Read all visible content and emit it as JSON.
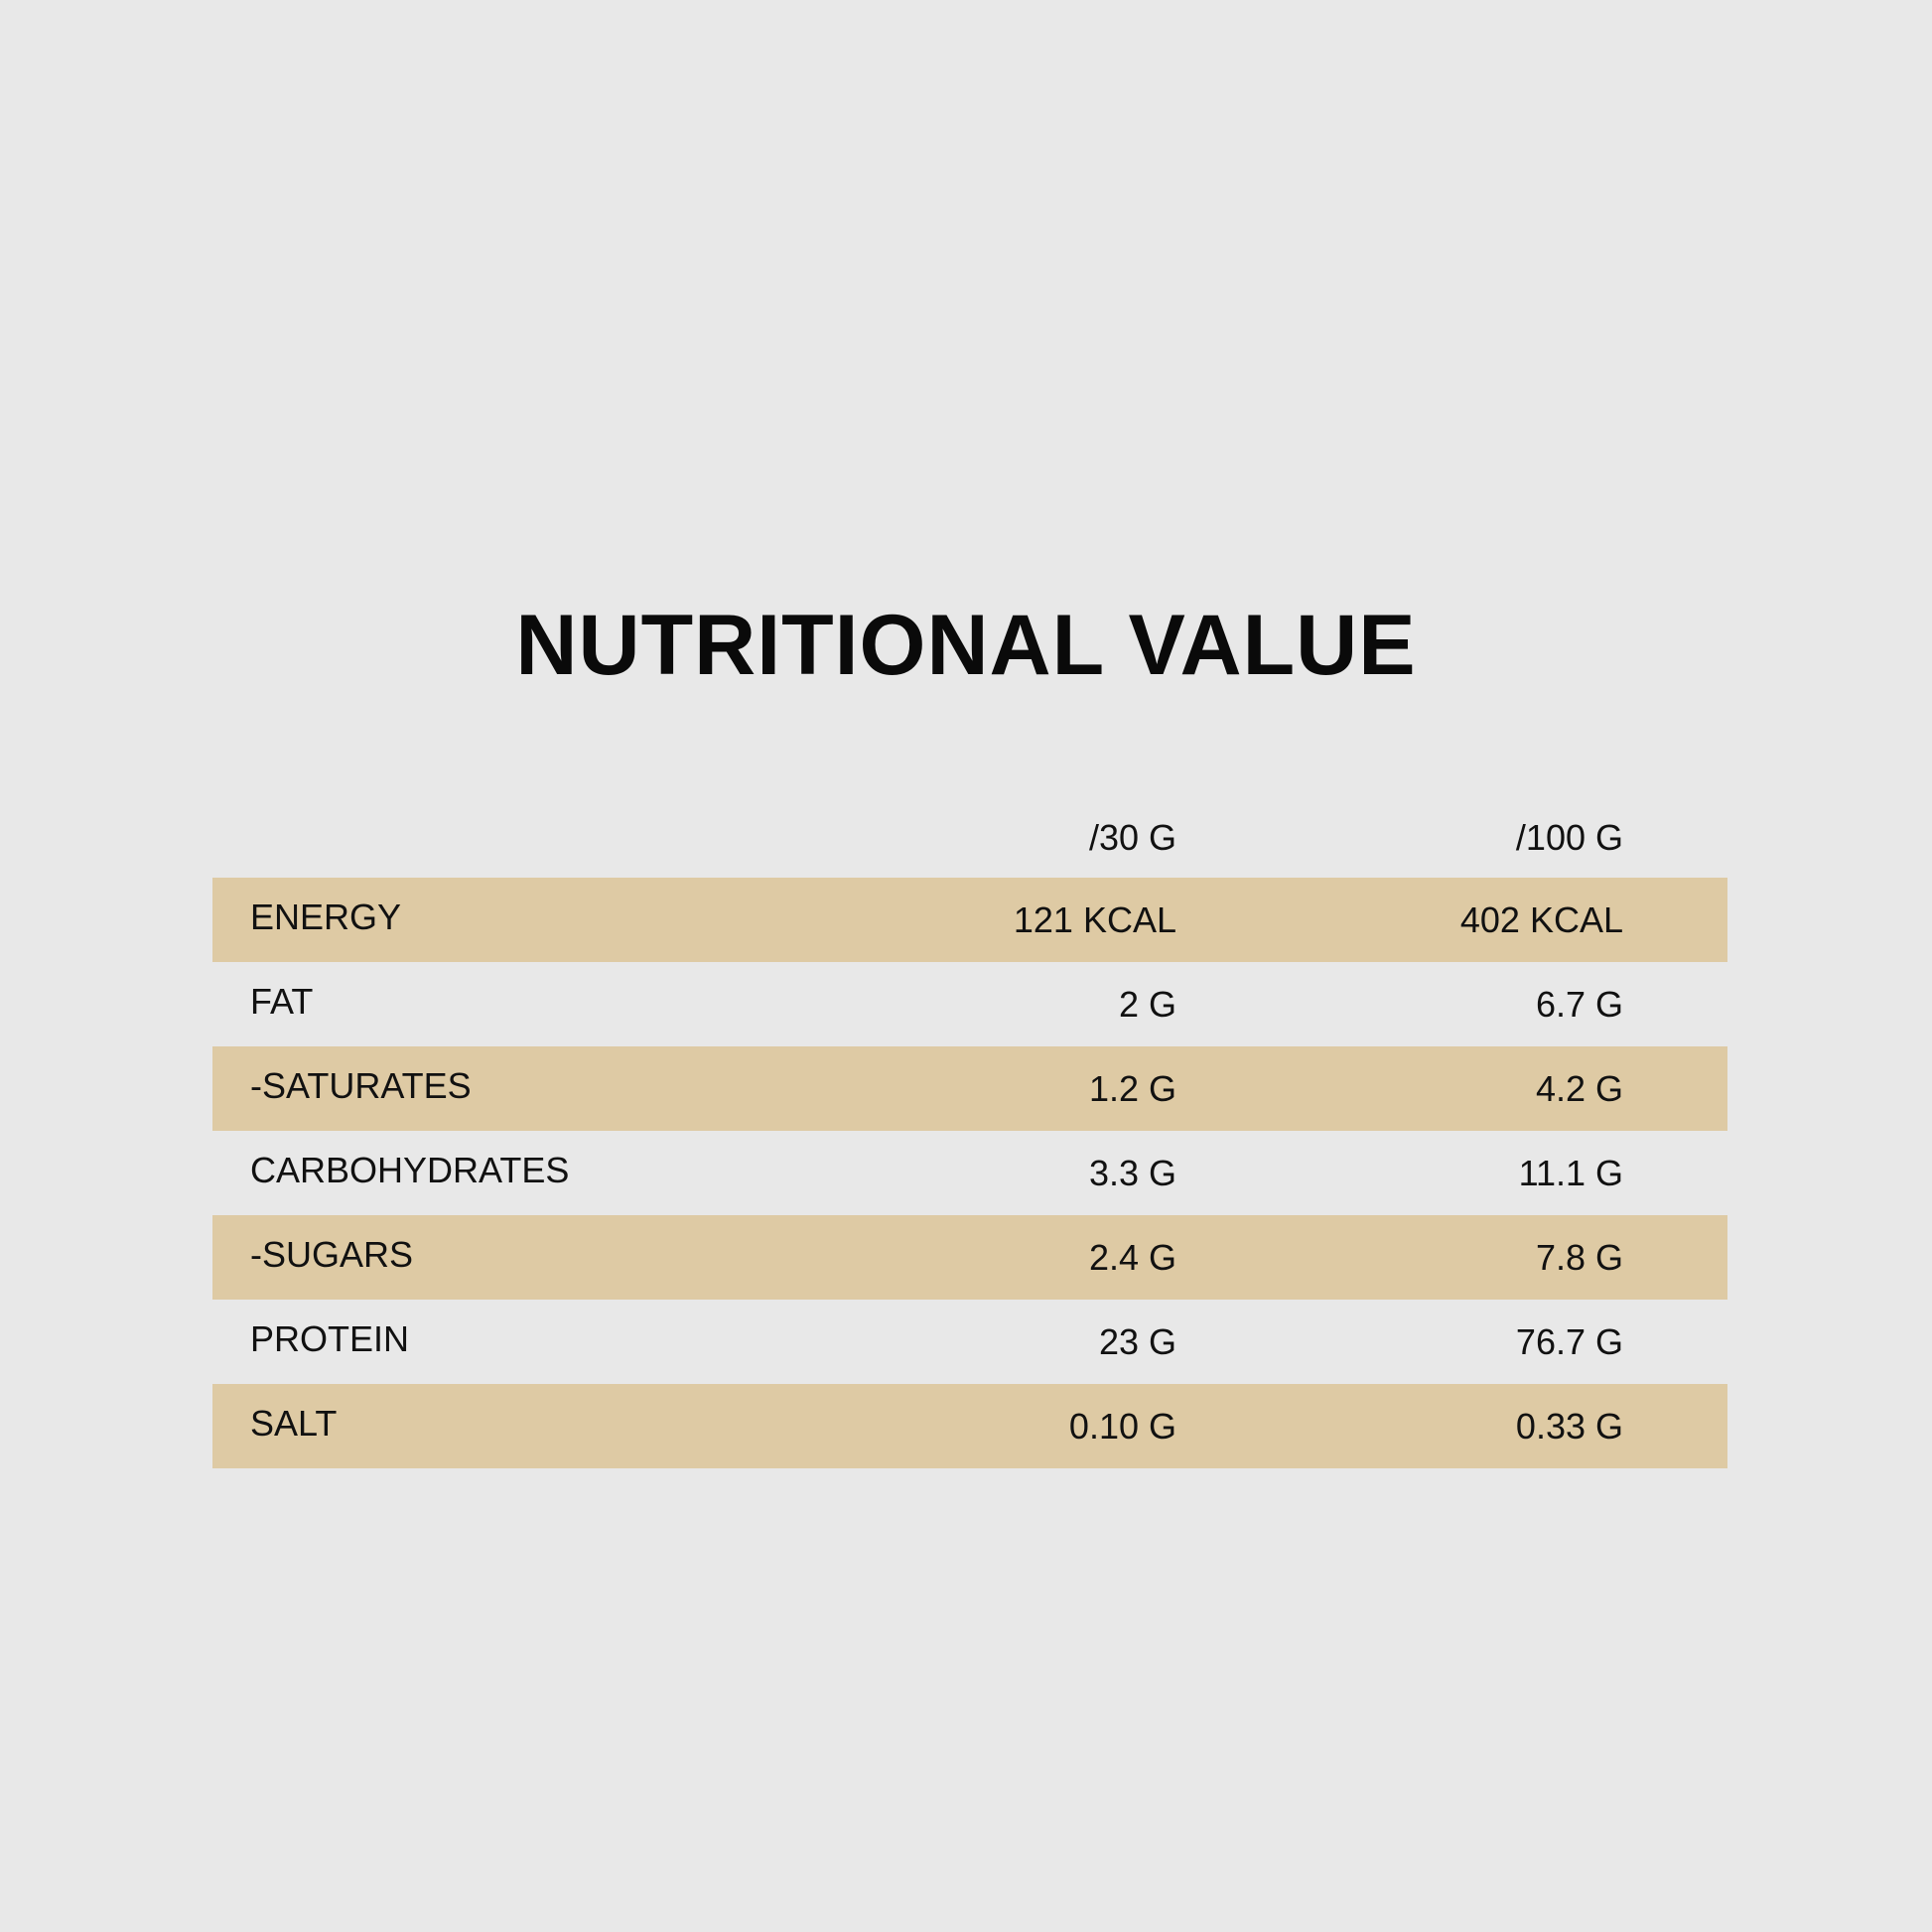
{
  "title": "NUTRITIONAL VALUE",
  "columns": {
    "per_30g": "/30 G",
    "per_100g": "/100 G"
  },
  "rows": [
    {
      "label": "ENERGY",
      "per_30g": "121 KCAL",
      "per_100g": "402 KCAL"
    },
    {
      "label": "FAT",
      "per_30g": "2 G",
      "per_100g": "6.7 G"
    },
    {
      "label": "-SATURATES",
      "per_30g": "1.2 G",
      "per_100g": "4.2 G"
    },
    {
      "label": "CARBOHYDRATES",
      "per_30g": "3.3 G",
      "per_100g": "11.1 G"
    },
    {
      "label": "-SUGARS",
      "per_30g": "2.4 G",
      "per_100g": "7.8 G"
    },
    {
      "label": "PROTEIN",
      "per_30g": "23 G",
      "per_100g": "76.7 G"
    },
    {
      "label": "SALT",
      "per_30g": "0.10 G",
      "per_100g": "0.33 G"
    }
  ],
  "colors": {
    "background": "#e8e8e8",
    "row_shade": "#decaa4",
    "text": "#111111"
  }
}
